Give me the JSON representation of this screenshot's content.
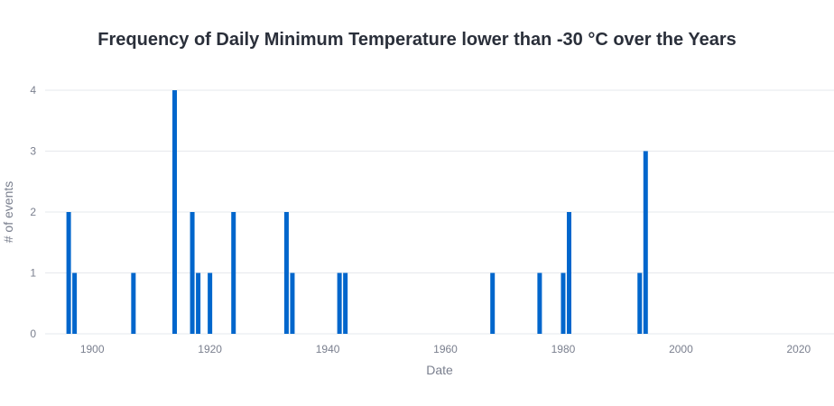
{
  "chart_data": {
    "type": "bar",
    "title": "Frequency of Daily Minimum Temperature lower than -30 °C  over the Years",
    "xlabel": "Date",
    "ylabel": "# of events",
    "xlim": [
      1892,
      2026
    ],
    "ylim": [
      0,
      4
    ],
    "x_ticks": [
      1900,
      1920,
      1940,
      1960,
      1980,
      2000,
      2020
    ],
    "y_ticks": [
      0,
      1,
      2,
      3,
      4
    ],
    "grid": "horizontal",
    "bar_color": "#0066cc",
    "x": [
      1896,
      1897,
      1907,
      1914,
      1917,
      1918,
      1920,
      1924,
      1933,
      1934,
      1942,
      1943,
      1968,
      1976,
      1980,
      1981,
      1993,
      1994
    ],
    "values": [
      2,
      1,
      1,
      4,
      2,
      1,
      1,
      2,
      2,
      1,
      1,
      1,
      1,
      1,
      1,
      2,
      1,
      3
    ]
  }
}
